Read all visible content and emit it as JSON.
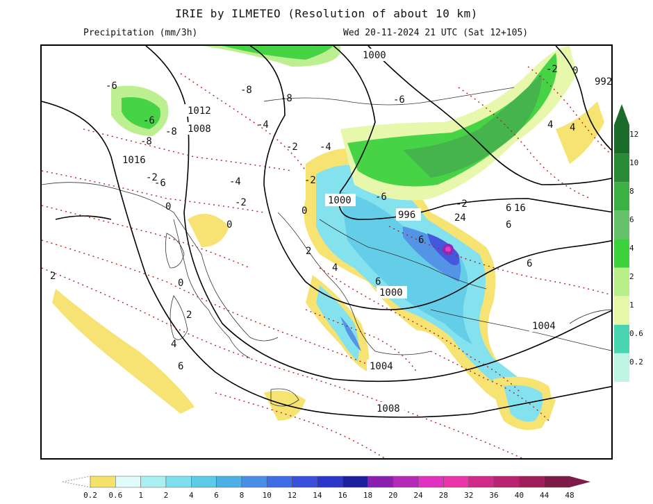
{
  "header": {
    "title": "IRIE by ILMETEO (Resolution of about 10 km)",
    "left_caption": "Precipitation (mm/3h)",
    "right_caption": "Wed 20-11-2024 21 UTC (Sat 12+105)"
  },
  "isobar_labels": [
    "1016",
    "1012",
    "1008",
    "1000",
    "996",
    "1000",
    "1004",
    "1008",
    "1000",
    "1004",
    "992"
  ],
  "temp_labels": [
    "-6",
    "-6",
    "-8",
    "-8",
    "-8",
    "-8",
    "-4",
    "-6",
    "-4",
    "-2",
    "-2",
    "-2",
    "-4",
    "-2",
    "-6",
    "-6",
    "-2",
    "0",
    "0",
    "0",
    "0",
    "0",
    "2",
    "2",
    "2",
    "4",
    "4",
    "4",
    "6",
    "6",
    "6",
    "6",
    "6",
    "4",
    "6",
    "24",
    "16",
    "-2"
  ],
  "precip_scale": {
    "vertical": {
      "ticks": [
        "12",
        "10",
        "8",
        "6",
        "4",
        "2",
        "1",
        "0.6",
        "0.2"
      ],
      "colors": [
        "#1b6b2a",
        "#2a8a35",
        "#3cb043",
        "#66c26a",
        "#3dd23d",
        "#b8ef8a",
        "#e6f7a8",
        "#48d5b0",
        "#bff5e3"
      ]
    },
    "horizontal": {
      "ticks": [
        "0.2",
        "0.6",
        "1",
        "2",
        "4",
        "6",
        "8",
        "10",
        "12",
        "14",
        "16",
        "18",
        "20",
        "24",
        "28",
        "32",
        "36",
        "40",
        "44",
        "48"
      ],
      "colors": [
        "#f6e26b",
        "#e2fbfb",
        "#a9f0f2",
        "#7ee0ee",
        "#5ccbe7",
        "#4fb0e6",
        "#4a8fe6",
        "#3f6de4",
        "#3a4fdc",
        "#2c36c8",
        "#1d1f9c",
        "#8a1fb0",
        "#b42ab8",
        "#e032c0",
        "#ea35a8",
        "#d02b88",
        "#b82470",
        "#9e1f5a",
        "#7e1a47"
      ]
    }
  }
}
